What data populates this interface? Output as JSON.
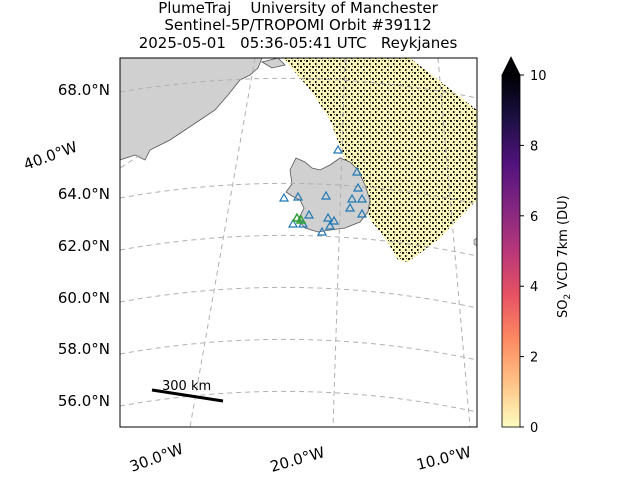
{
  "header": {
    "line1": "PlumeTraj    University of Manchester",
    "line2": "Sentinel-5P/TROPOMI Orbit #39112",
    "line3": "2025-05-01   05:36-05:41 UTC   Reykjanes"
  },
  "map": {
    "lat_labels": [
      "68.0°N",
      "64.0°N",
      "62.0°N",
      "60.0°N",
      "58.0°N",
      "56.0°N"
    ],
    "lon_labels": [
      "40.0°W",
      "30.0°W",
      "20.0°W",
      "10.0°W"
    ],
    "scale_bar_label": "300 km"
  },
  "colorbar": {
    "label_main": "SO",
    "label_sub": "2",
    "label_rest": " VCD 7km (DU)",
    "min": 0,
    "max": 10,
    "ticks": [
      "0",
      "2",
      "4",
      "6",
      "8",
      "10"
    ],
    "colors": [
      "#fcfdbf",
      "#fec287",
      "#fc8961",
      "#e75263",
      "#b73779",
      "#822681",
      "#51127c",
      "#1c1044",
      "#000004"
    ]
  }
}
